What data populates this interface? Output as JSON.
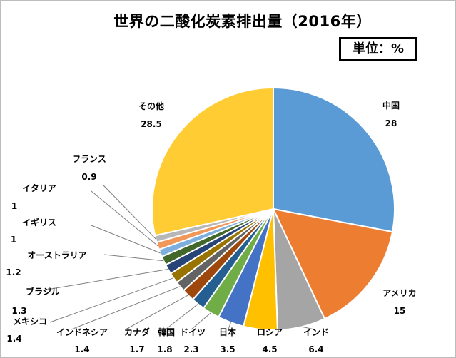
{
  "chart_data": {
    "type": "pie",
    "title": "世界の二酸化炭素排出量（2016年）",
    "unit": "単位：%",
    "slices": [
      {
        "label": "中国",
        "value": 28,
        "value_text": "28",
        "color": "#5b9bd5"
      },
      {
        "label": "アメリカ",
        "value": 15,
        "value_text": "15",
        "color": "#ed7d31"
      },
      {
        "label": "インド",
        "value": 6.4,
        "value_text": "6.4",
        "color": "#a5a5a5"
      },
      {
        "label": "ロシア",
        "value": 4.5,
        "value_text": "4.5",
        "color": "#ffc000"
      },
      {
        "label": "日本",
        "value": 3.5,
        "value_text": "3.5",
        "color": "#4472c4"
      },
      {
        "label": "ドイツ",
        "value": 2.3,
        "value_text": "2.3",
        "color": "#70ad47"
      },
      {
        "label": "韓国",
        "value": 1.8,
        "value_text": "1.8",
        "color": "#255e91"
      },
      {
        "label": "カナダ",
        "value": 1.7,
        "value_text": "1.7",
        "color": "#9e480e"
      },
      {
        "label": "インドネシア",
        "value": 1.4,
        "value_text": "1.4",
        "color": "#636363"
      },
      {
        "label": "メキシコ",
        "value": 1.4,
        "value_text": "1.4",
        "color": "#997300"
      },
      {
        "label": "ブラジル",
        "value": 1.3,
        "value_text": "1.3",
        "color": "#264478"
      },
      {
        "label": "オーストラリア",
        "value": 1.2,
        "value_text": "1.2",
        "color": "#43682b"
      },
      {
        "label": "イギリス",
        "value": 1,
        "value_text": "1",
        "color": "#7cafdd"
      },
      {
        "label": "イタリア",
        "value": 1,
        "value_text": "1",
        "color": "#f1975a"
      },
      {
        "label": "フランス",
        "value": 0.9,
        "value_text": "0.9",
        "color": "#b7b7b7"
      },
      {
        "label": "その他",
        "value": 28.5,
        "value_text": "28.5",
        "color": "#ffcd33"
      }
    ],
    "legend": "none"
  }
}
